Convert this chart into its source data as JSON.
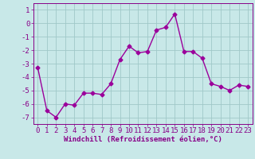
{
  "x": [
    0,
    1,
    2,
    3,
    4,
    5,
    6,
    7,
    8,
    9,
    10,
    11,
    12,
    13,
    14,
    15,
    16,
    17,
    18,
    19,
    20,
    21,
    22,
    23
  ],
  "y": [
    -3.3,
    -6.5,
    -7.0,
    -6.0,
    -6.1,
    -5.2,
    -5.2,
    -5.3,
    -4.5,
    -2.7,
    -1.7,
    -2.2,
    -2.1,
    -0.5,
    -0.3,
    0.7,
    -2.1,
    -2.1,
    -2.6,
    -4.5,
    -4.7,
    -5.0,
    -4.6,
    -4.7
  ],
  "line_color": "#9b009b",
  "marker": "D",
  "marker_size": 2.5,
  "bg_color": "#c8e8e8",
  "grid_color": "#a0c8c8",
  "xlabel": "Windchill (Refroidissement éolien,°C)",
  "xlim": [
    -0.5,
    23.5
  ],
  "ylim": [
    -7.5,
    1.5
  ],
  "yticks": [
    1,
    0,
    -1,
    -2,
    -3,
    -4,
    -5,
    -6,
    -7
  ],
  "xticks": [
    0,
    1,
    2,
    3,
    4,
    5,
    6,
    7,
    8,
    9,
    10,
    11,
    12,
    13,
    14,
    15,
    16,
    17,
    18,
    19,
    20,
    21,
    22,
    23
  ],
  "xlabel_fontsize": 6.5,
  "tick_fontsize": 6.5,
  "line_width": 1.0,
  "tick_color": "#880088",
  "spine_color": "#880088"
}
